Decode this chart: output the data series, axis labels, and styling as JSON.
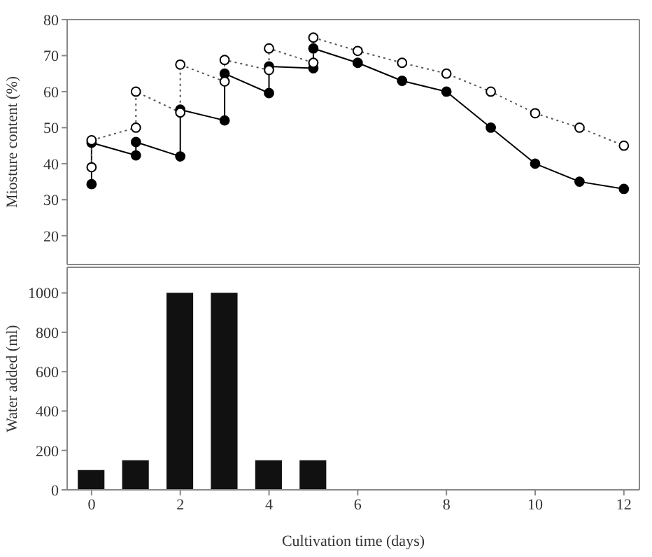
{
  "chart_data": [
    {
      "type": "line",
      "ylabel": "Miosture content (%)",
      "xlim": [
        -0.55,
        12.35
      ],
      "ylim": [
        12,
        80
      ],
      "yticks": [
        20,
        30,
        40,
        50,
        60,
        70,
        80
      ],
      "tick_labels": "y",
      "grid": false,
      "legend": false,
      "marker": "circle",
      "series": [
        {
          "color": "#000000",
          "line_style": "solid",
          "x": [
            0,
            0,
            1,
            1,
            2,
            2,
            3,
            3,
            4,
            4,
            5,
            5,
            6,
            7,
            8,
            9,
            10,
            11,
            12
          ],
          "values": [
            34.3,
            45.8,
            42.3,
            46,
            42,
            55,
            52,
            65,
            59.6,
            67,
            66.5,
            72,
            68,
            63,
            60,
            50,
            40,
            35,
            33
          ]
        },
        {
          "color": "#555555",
          "line_style": "dotted",
          "x": [
            0,
            0,
            1,
            1,
            2,
            2,
            3,
            3,
            4,
            4,
            5,
            5,
            6,
            7,
            8,
            9,
            10,
            11,
            12
          ],
          "values": [
            39,
            46.5,
            50,
            60,
            54.2,
            67.5,
            62.8,
            68.8,
            66,
            72,
            68,
            75,
            71.3,
            68,
            65,
            60,
            54,
            50,
            45
          ]
        }
      ]
    },
    {
      "type": "bar",
      "xlabel": "Cultivation time (days)",
      "ylabel": "Water added (ml)",
      "x": [
        0,
        1,
        2,
        3,
        4,
        5
      ],
      "values": [
        100,
        150,
        1000,
        1000,
        150,
        150
      ],
      "color": "#111111",
      "xlim": [
        -0.55,
        12.35
      ],
      "xticks": [
        0,
        2,
        4,
        6,
        8,
        10,
        12
      ],
      "ylim": [
        0,
        1130
      ],
      "yticks": [
        0,
        200,
        400,
        600,
        800,
        1000
      ],
      "grid": false,
      "legend": false
    }
  ]
}
